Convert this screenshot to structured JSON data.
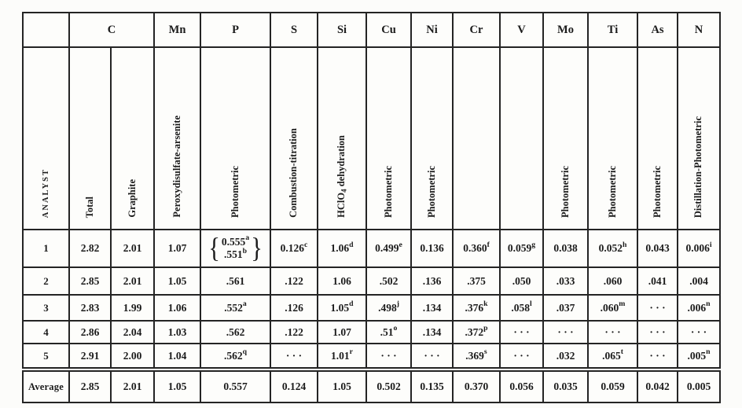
{
  "table": {
    "corner": "",
    "analyst_label": "ANALYST",
    "columns": [
      {
        "element": "C",
        "methods": [
          "Total",
          "Graphite"
        ]
      },
      {
        "element": "Mn",
        "methods": [
          "Peroxydisulfate-arsenite"
        ]
      },
      {
        "element": "P",
        "methods": [
          "Photometric"
        ]
      },
      {
        "element": "S",
        "methods": [
          "Combustion-titration"
        ]
      },
      {
        "element": "Si",
        "methods": [
          "HClO_4_ dehydration"
        ]
      },
      {
        "element": "Cu",
        "methods": [
          "Photometric"
        ]
      },
      {
        "element": "Ni",
        "methods": [
          "Photometric"
        ]
      },
      {
        "element": "Cr",
        "methods": [
          ""
        ]
      },
      {
        "element": "V",
        "methods": [
          ""
        ]
      },
      {
        "element": "Mo",
        "methods": [
          "Photometric"
        ]
      },
      {
        "element": "Ti",
        "methods": [
          "Photometric"
        ]
      },
      {
        "element": "As",
        "methods": [
          "Photometric"
        ]
      },
      {
        "element": "N",
        "methods": [
          "Distillation-Photometric"
        ]
      }
    ],
    "rows": [
      {
        "analyst": "1",
        "values": [
          "2.82",
          "2.01",
          "1.07",
          {
            "brace": [
              "0.555^a^",
              ".551^b^"
            ]
          },
          "0.126^c^",
          "1.06^d^",
          "0.499^e^",
          "0.136",
          "0.360^f^",
          "0.059^g^",
          "0.038",
          "0.052^h^",
          "0.043",
          "0.006^i^"
        ]
      },
      {
        "analyst": "2",
        "values": [
          "2.85",
          "2.01",
          "1.05",
          ".561",
          ".122",
          "1.06",
          ".502",
          ".136",
          ".375",
          ".050",
          ".033",
          ".060",
          ".041",
          ".004"
        ]
      },
      {
        "analyst": "3",
        "values": [
          "2.83",
          "1.99",
          "1.06",
          ".552^a^",
          ".126",
          "1.05^d^",
          ".498^j^",
          ".134",
          ".376^k^",
          ".058^l^",
          ".037",
          ".060^m^",
          "· · ·",
          ".006^n^"
        ]
      },
      {
        "analyst": "4",
        "values": [
          "2.86",
          "2.04",
          "1.03",
          ".562",
          ".122",
          "1.07",
          ".51^o^",
          ".134",
          ".372^p^",
          "· · ·",
          "· · ·",
          "· · ·",
          "· · ·",
          "· · ·"
        ]
      },
      {
        "analyst": "5",
        "values": [
          "2.91",
          "2.00",
          "1.04",
          ".562^q^",
          "· · ·",
          "1.01^r^",
          "· · ·",
          "· · ·",
          ".369^s^",
          "· · ·",
          ".032",
          ".065^t^",
          "· · ·",
          ".005^n^"
        ]
      }
    ],
    "average": {
      "analyst": "Average",
      "values": [
        "2.85",
        "2.01",
        "1.05",
        "0.557",
        "0.124",
        "1.05",
        "0.502",
        "0.135",
        "0.370",
        "0.056",
        "0.035",
        "0.059",
        "0.042",
        "0.005"
      ]
    }
  },
  "colors": {
    "ink": "#1b1b1b",
    "paper": "#fcfcfa",
    "rule": "#242424"
  }
}
